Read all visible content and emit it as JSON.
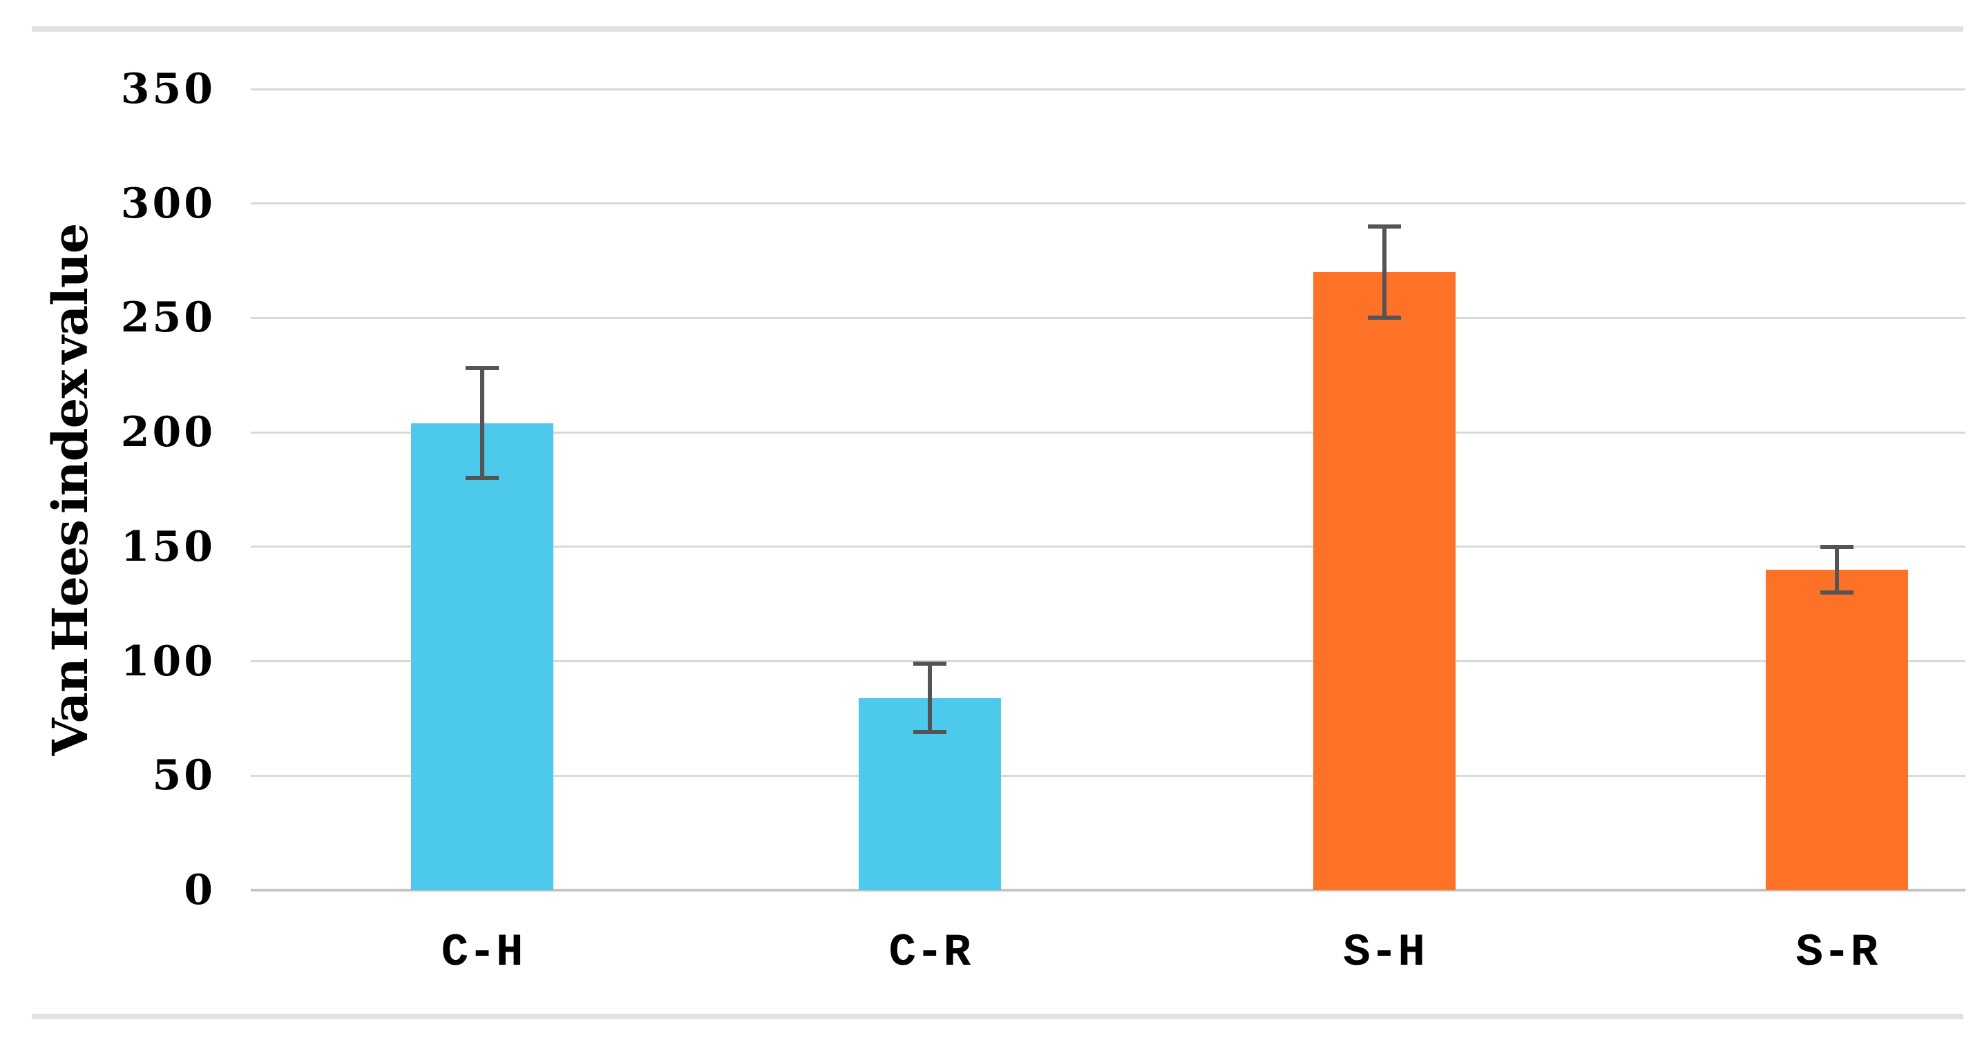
{
  "chart_data": {
    "type": "bar",
    "title": "",
    "xlabel": "",
    "ylabel": "Van Hees index value",
    "categories": [
      "C-H",
      "C-R",
      "S-H",
      "S-R"
    ],
    "values": [
      204,
      84,
      270,
      140
    ],
    "error_bars": [
      24,
      15,
      20,
      10
    ],
    "bar_colors": [
      "#4DC9EB",
      "#4DC9EB",
      "#FD7226",
      "#FD7226"
    ],
    "ylim": [
      0,
      350
    ],
    "yticks": [
      0,
      50,
      100,
      150,
      200,
      250,
      300,
      350
    ],
    "grid": "horizontal",
    "legend": "none",
    "layout": {
      "bar_centers_pct": [
        13.5,
        39.6,
        66.1,
        92.5
      ],
      "bar_width_pct": 8.3
    }
  },
  "colors": {
    "bar_cyan": "#4DC9EB",
    "bar_orange": "#FD7226",
    "error_bar": "#545454",
    "gridline": "#D9D9D9",
    "axis_line": "#C4C4C4",
    "text": "#000000",
    "page_rule": "#E2E2E2",
    "background": "#FFFFFF"
  }
}
